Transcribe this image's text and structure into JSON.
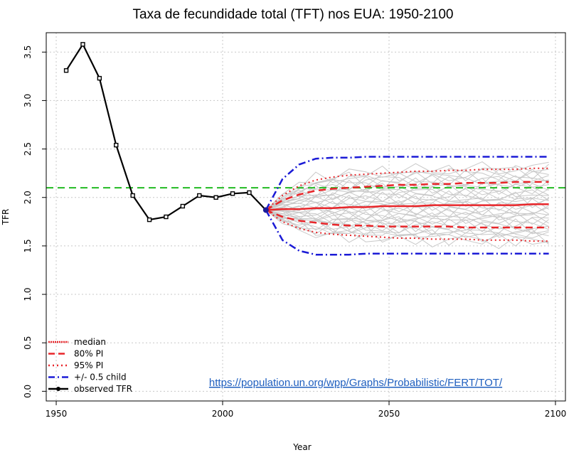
{
  "chart_data": {
    "type": "line",
    "title": "Taxa de fecundidade total (TFT) nos EUA: 1950-2100",
    "xlabel": "Year",
    "ylabel": "TFR",
    "xlim": [
      1947,
      2103
    ],
    "ylim": [
      -0.1,
      3.7
    ],
    "xticks": [
      1950,
      2000,
      2050,
      2100
    ],
    "yticks": [
      0.0,
      0.5,
      1.0,
      1.5,
      2.0,
      2.5,
      3.0,
      3.5
    ],
    "xtick_labels": [
      "1950",
      "2000",
      "2050",
      "2100"
    ],
    "ytick_labels": [
      "0.0",
      "0.5",
      "1.0",
      "1.5",
      "2.0",
      "2.5",
      "3.0",
      "3.5"
    ],
    "grid": true,
    "replacement_level": 2.1,
    "observed": {
      "x": [
        1953,
        1958,
        1963,
        1968,
        1973,
        1978,
        1983,
        1988,
        1993,
        1998,
        2003,
        2008,
        2013
      ],
      "y": [
        3.31,
        3.58,
        3.23,
        2.54,
        2.02,
        1.77,
        1.8,
        1.91,
        2.02,
        2.0,
        2.04,
        2.05,
        1.87
      ]
    },
    "projection": {
      "x": [
        2013,
        2018,
        2023,
        2028,
        2033,
        2038,
        2043,
        2048,
        2053,
        2058,
        2063,
        2068,
        2073,
        2078,
        2083,
        2088,
        2093,
        2098
      ],
      "median": [
        1.87,
        1.88,
        1.88,
        1.89,
        1.89,
        1.9,
        1.9,
        1.91,
        1.91,
        1.91,
        1.92,
        1.92,
        1.92,
        1.92,
        1.92,
        1.92,
        1.93,
        1.93
      ],
      "pi80_upper": [
        1.87,
        1.97,
        2.03,
        2.07,
        2.09,
        2.1,
        2.11,
        2.12,
        2.13,
        2.13,
        2.14,
        2.14,
        2.15,
        2.15,
        2.15,
        2.16,
        2.16,
        2.16
      ],
      "pi80_lower": [
        1.87,
        1.8,
        1.76,
        1.74,
        1.72,
        1.71,
        1.71,
        1.7,
        1.7,
        1.7,
        1.7,
        1.7,
        1.69,
        1.69,
        1.69,
        1.69,
        1.69,
        1.69
      ],
      "pi95_upper": [
        1.87,
        2.02,
        2.12,
        2.18,
        2.21,
        2.23,
        2.24,
        2.25,
        2.26,
        2.27,
        2.27,
        2.28,
        2.28,
        2.29,
        2.29,
        2.29,
        2.3,
        2.3
      ],
      "pi95_lower": [
        1.87,
        1.75,
        1.68,
        1.64,
        1.62,
        1.61,
        1.6,
        1.59,
        1.58,
        1.58,
        1.57,
        1.57,
        1.57,
        1.56,
        1.56,
        1.56,
        1.55,
        1.55
      ],
      "half_child_upper": [
        1.87,
        2.19,
        2.34,
        2.4,
        2.41,
        2.41,
        2.42,
        2.42,
        2.42,
        2.42,
        2.42,
        2.42,
        2.42,
        2.42,
        2.42,
        2.42,
        2.42,
        2.42
      ],
      "half_child_lower": [
        1.87,
        1.56,
        1.45,
        1.41,
        1.41,
        1.41,
        1.42,
        1.42,
        1.42,
        1.42,
        1.42,
        1.42,
        1.42,
        1.42,
        1.42,
        1.42,
        1.42,
        1.42
      ]
    },
    "legend": {
      "placement": "bottom-left",
      "entries": [
        {
          "label": "median",
          "color": "#e8262a",
          "style": "solid-dotted"
        },
        {
          "label": "80% PI",
          "color": "#e8262a",
          "style": "dashed"
        },
        {
          "label": "95% PI",
          "color": "#e8262a",
          "style": "dotted"
        },
        {
          "label": "+/- 0.5 child",
          "color": "#1b1bd6",
          "style": "dashdot"
        },
        {
          "label": "observed TFR",
          "color": "#000000",
          "style": "solid-marker"
        }
      ]
    },
    "annotation": "https://population.un.org/wpp/Graphs/Probabilistic/FERT/TOT/",
    "colors": {
      "median": "#e8262a",
      "pi": "#e8262a",
      "half_child": "#1b1bd6",
      "replacement": "#22bb22",
      "trajectories": "#c8c8c8",
      "observed": "#000000",
      "grid": "#c8c8c8",
      "link": "#1f5fbf"
    }
  }
}
